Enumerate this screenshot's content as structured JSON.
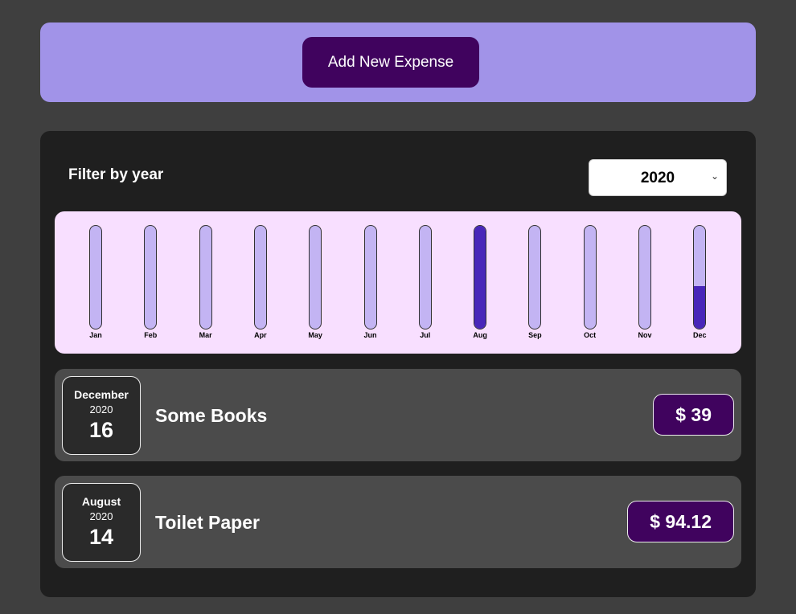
{
  "new_expense": {
    "add_button_label": "Add New Expense"
  },
  "filter": {
    "label": "Filter by year",
    "selected_year": "2020",
    "chevron": "⌄"
  },
  "chart_data": {
    "type": "bar",
    "categories": [
      "Jan",
      "Feb",
      "Mar",
      "Apr",
      "May",
      "Jun",
      "Jul",
      "Aug",
      "Sep",
      "Oct",
      "Nov",
      "Dec"
    ],
    "values": [
      0,
      0,
      0,
      0,
      0,
      0,
      0,
      94.12,
      0,
      0,
      0,
      39
    ],
    "ylim": [
      0,
      94.12
    ],
    "colors": {
      "track": "#c3b4f3",
      "fill": "#4826b9",
      "background": "#f8dfff"
    }
  },
  "expenses": [
    {
      "month": "December",
      "year": "2020",
      "day": "16",
      "title": "Some Books",
      "amount": "$ 39"
    },
    {
      "month": "August",
      "year": "2020",
      "day": "14",
      "title": "Toilet Paper",
      "amount": "$ 94.12"
    }
  ],
  "colors": {
    "accent": "#40035e",
    "header_bg": "#a193e8",
    "page_bg": "#3f3f3f",
    "panel_bg": "#1f1f1f",
    "item_bg": "#4b4b4b"
  }
}
